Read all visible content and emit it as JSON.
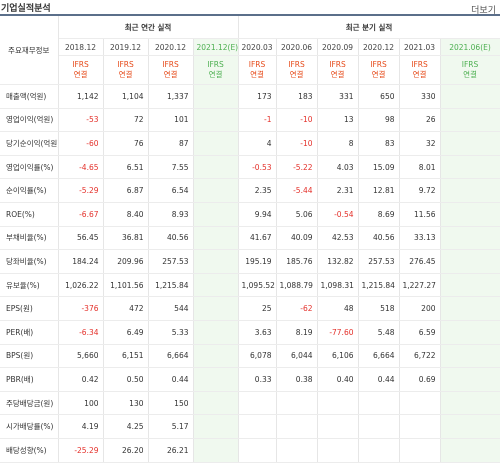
{
  "header": {
    "title": "기업실적분석",
    "more_label": "더보기"
  },
  "table": {
    "corner_label": "주요재무정보",
    "group_annual": "최근 연간 실적",
    "group_quarter": "최근 분기 실적",
    "periods": [
      "2018.12",
      "2019.12",
      "2020.12",
      "2021.12(E)",
      "2020.03",
      "2020.06",
      "2020.09",
      "2020.12",
      "2021.03",
      "2021.06(E)"
    ],
    "basis": [
      "IFRS\n연결",
      "IFRS\n연결",
      "IFRS\n연결",
      "IFRS\n연결",
      "IFRS\n연결",
      "IFRS\n연결",
      "IFRS\n연결",
      "IFRS\n연결",
      "IFRS\n연결",
      "IFRS\n연결"
    ],
    "rows": [
      {
        "label": "매출액(억원)",
        "values": [
          "1,142",
          "1,104",
          "1,337",
          "",
          "173",
          "183",
          "331",
          "650",
          "330",
          ""
        ]
      },
      {
        "label": "영업이익(억원)",
        "values": [
          "-53",
          "72",
          "101",
          "",
          "-1",
          "-10",
          "13",
          "98",
          "26",
          ""
        ]
      },
      {
        "label": "당기순이익(억원)",
        "values": [
          "-60",
          "76",
          "87",
          "",
          "4",
          "-10",
          "8",
          "83",
          "32",
          ""
        ]
      },
      {
        "label": "영업이익률(%)",
        "values": [
          "-4.65",
          "6.51",
          "7.55",
          "",
          "-0.53",
          "-5.22",
          "4.03",
          "15.09",
          "8.01",
          ""
        ]
      },
      {
        "label": "순이익률(%)",
        "values": [
          "-5.29",
          "6.87",
          "6.54",
          "",
          "2.35",
          "-5.44",
          "2.31",
          "12.81",
          "9.72",
          ""
        ]
      },
      {
        "label": "ROE(%)",
        "values": [
          "-6.67",
          "8.40",
          "8.93",
          "",
          "9.94",
          "5.06",
          "-0.54",
          "8.69",
          "11.56",
          ""
        ]
      },
      {
        "label": "부채비율(%)",
        "values": [
          "56.45",
          "36.81",
          "40.56",
          "",
          "41.67",
          "40.09",
          "42.53",
          "40.56",
          "33.13",
          ""
        ]
      },
      {
        "label": "당좌비율(%)",
        "values": [
          "184.24",
          "209.96",
          "257.53",
          "",
          "195.19",
          "185.76",
          "132.82",
          "257.53",
          "276.45",
          ""
        ]
      },
      {
        "label": "유보율(%)",
        "values": [
          "1,026.22",
          "1,101.56",
          "1,215.84",
          "",
          "1,095.52",
          "1,088.79",
          "1,098.31",
          "1,215.84",
          "1,227.27",
          ""
        ]
      },
      {
        "label": "EPS(원)",
        "values": [
          "-376",
          "472",
          "544",
          "",
          "25",
          "-62",
          "48",
          "518",
          "200",
          ""
        ]
      },
      {
        "label": "PER(배)",
        "values": [
          "-6.34",
          "6.49",
          "5.33",
          "",
          "3.63",
          "8.19",
          "-77.60",
          "5.48",
          "6.59",
          ""
        ]
      },
      {
        "label": "BPS(원)",
        "values": [
          "5,660",
          "6,151",
          "6,664",
          "",
          "6,078",
          "6,044",
          "6,106",
          "6,664",
          "6,722",
          ""
        ]
      },
      {
        "label": "PBR(배)",
        "values": [
          "0.42",
          "0.50",
          "0.44",
          "",
          "0.33",
          "0.38",
          "0.40",
          "0.44",
          "0.69",
          ""
        ]
      },
      {
        "label": "주당배당금(원)",
        "values": [
          "100",
          "130",
          "150",
          "",
          "",
          "",
          "",
          "",
          "",
          ""
        ]
      },
      {
        "label": "시가배당률(%)",
        "values": [
          "4.19",
          "4.25",
          "5.17",
          "",
          "",
          "",
          "",
          "",
          "",
          ""
        ]
      },
      {
        "label": "배당성향(%)",
        "values": [
          "-25.29",
          "26.20",
          "26.21",
          "",
          "",
          "",
          "",
          "",
          "",
          ""
        ]
      }
    ]
  },
  "colors": {
    "negative": "#e4312b",
    "forecast_bg": "#f0f9ef",
    "ifrs": "#e64a19",
    "forecast_label": "#4caf50"
  }
}
